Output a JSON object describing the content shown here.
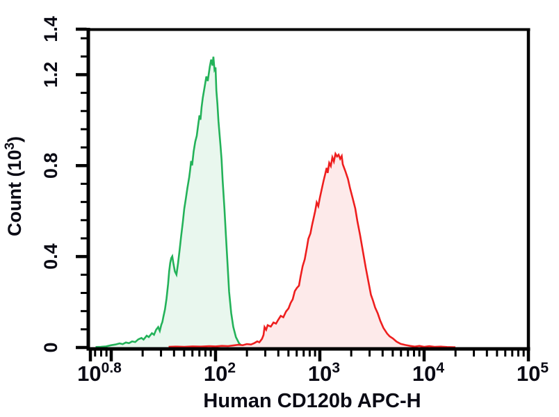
{
  "figure": {
    "type_label": "flow-cytometry-histogram"
  },
  "chart_data": {
    "type": "area",
    "title": "",
    "xlabel": "Human CD120b APC-H",
    "ylabel": "Count (10^3)",
    "ylabel_parts": {
      "base": "Count (10",
      "sup": "3",
      "close": ")"
    },
    "x_axis": {
      "scale": "log10",
      "min_log": 0.8,
      "max_log": 5,
      "decade_tick_logs": [
        0.8,
        1,
        2,
        3,
        4,
        5
      ],
      "labeled_ticks": [
        {
          "log": 0.8,
          "base": "10",
          "exp": "0.8"
        },
        {
          "log": 2,
          "base": "10",
          "exp": "2"
        },
        {
          "log": 3,
          "base": "10",
          "exp": "3"
        },
        {
          "log": 4,
          "base": "10",
          "exp": "4"
        },
        {
          "log": 5,
          "base": "10",
          "exp": "5"
        }
      ]
    },
    "y_axis": {
      "min": 0,
      "max": 1.4,
      "major_ticks": [
        {
          "value": 0,
          "label": "0"
        },
        {
          "value": 0.4,
          "label": "0.4"
        },
        {
          "value": 0.8,
          "label": "0.8"
        },
        {
          "value": 1.2,
          "label": "1.2"
        },
        {
          "value": 1.4,
          "label": "1.4"
        }
      ],
      "minor_step": 0.08,
      "grid": false
    },
    "legend": "none",
    "series": [
      {
        "name": "green-control-histogram",
        "stroke": "#23b259",
        "fill": "#e9f7ee",
        "points": [
          [
            0.85,
            0.002
          ],
          [
            0.9,
            0.003
          ],
          [
            0.95,
            0.005
          ],
          [
            1.0,
            0.01
          ],
          [
            1.04,
            0.013
          ],
          [
            1.08,
            0.018
          ],
          [
            1.11,
            0.015
          ],
          [
            1.14,
            0.022
          ],
          [
            1.17,
            0.019
          ],
          [
            1.2,
            0.027
          ],
          [
            1.23,
            0.024
          ],
          [
            1.26,
            0.036
          ],
          [
            1.29,
            0.042
          ],
          [
            1.31,
            0.035
          ],
          [
            1.34,
            0.052
          ],
          [
            1.36,
            0.046
          ],
          [
            1.39,
            0.063
          ],
          [
            1.41,
            0.056
          ],
          [
            1.43,
            0.078
          ],
          [
            1.45,
            0.09
          ],
          [
            1.465,
            0.073
          ],
          [
            1.48,
            0.1
          ],
          [
            1.49,
            0.112
          ],
          [
            1.5,
            0.135
          ],
          [
            1.515,
            0.168
          ],
          [
            1.53,
            0.215
          ],
          [
            1.545,
            0.28
          ],
          [
            1.555,
            0.335
          ],
          [
            1.565,
            0.372
          ],
          [
            1.575,
            0.393
          ],
          [
            1.585,
            0.401
          ],
          [
            1.595,
            0.372
          ],
          [
            1.61,
            0.335
          ],
          [
            1.625,
            0.321
          ],
          [
            1.64,
            0.369
          ],
          [
            1.655,
            0.428
          ],
          [
            1.67,
            0.489
          ],
          [
            1.686,
            0.55
          ],
          [
            1.7,
            0.61
          ],
          [
            1.715,
            0.655
          ],
          [
            1.73,
            0.701
          ],
          [
            1.748,
            0.75
          ],
          [
            1.757,
            0.782
          ],
          [
            1.766,
            0.82
          ],
          [
            1.775,
            0.801
          ],
          [
            1.79,
            0.862
          ],
          [
            1.805,
            0.905
          ],
          [
            1.82,
            0.931
          ],
          [
            1.833,
            0.976
          ],
          [
            1.846,
            1.021
          ],
          [
            1.855,
            1.002
          ],
          [
            1.866,
            1.056
          ],
          [
            1.878,
            1.099
          ],
          [
            1.895,
            1.146
          ],
          [
            1.912,
            1.192
          ],
          [
            1.925,
            1.172
          ],
          [
            1.945,
            1.236
          ],
          [
            1.958,
            1.266
          ],
          [
            1.972,
            1.24
          ],
          [
            1.979,
            1.279
          ],
          [
            1.99,
            1.222
          ],
          [
            2.0,
            1.232
          ],
          [
            2.008,
            1.13
          ],
          [
            2.018,
            1.072
          ],
          [
            2.028,
            0.996
          ],
          [
            2.04,
            0.93
          ],
          [
            2.048,
            0.886
          ],
          [
            2.058,
            0.826
          ],
          [
            2.068,
            0.736
          ],
          [
            2.085,
            0.611
          ],
          [
            2.1,
            0.489
          ],
          [
            2.115,
            0.366
          ],
          [
            2.13,
            0.246
          ],
          [
            2.15,
            0.152
          ],
          [
            2.17,
            0.091
          ],
          [
            2.195,
            0.046
          ],
          [
            2.225,
            0.019
          ],
          [
            2.25,
            0.008
          ],
          [
            2.29,
            0.003
          ],
          [
            2.33,
            0.001
          ]
        ]
      },
      {
        "name": "red-cd120b-histogram",
        "stroke": "#ee1e1e",
        "fill": "#fdeaea",
        "points": [
          [
            1.55,
            0.003
          ],
          [
            1.62,
            0.004
          ],
          [
            1.7,
            0.003
          ],
          [
            1.78,
            0.005
          ],
          [
            1.86,
            0.004
          ],
          [
            1.94,
            0.006
          ],
          [
            2.0,
            0.005
          ],
          [
            2.06,
            0.007
          ],
          [
            2.12,
            0.006
          ],
          [
            2.17,
            0.009
          ],
          [
            2.22,
            0.012
          ],
          [
            2.26,
            0.01
          ],
          [
            2.3,
            0.015
          ],
          [
            2.34,
            0.013
          ],
          [
            2.37,
            0.019
          ],
          [
            2.4,
            0.027
          ],
          [
            2.42,
            0.023
          ],
          [
            2.445,
            0.038
          ],
          [
            2.46,
            0.055
          ],
          [
            2.47,
            0.09
          ],
          [
            2.485,
            0.078
          ],
          [
            2.5,
            0.098
          ],
          [
            2.53,
            0.092
          ],
          [
            2.555,
            0.11
          ],
          [
            2.58,
            0.105
          ],
          [
            2.6,
            0.121
          ],
          [
            2.625,
            0.139
          ],
          [
            2.65,
            0.133
          ],
          [
            2.675,
            0.158
          ],
          [
            2.7,
            0.172
          ],
          [
            2.72,
            0.196
          ],
          [
            2.74,
            0.212
          ],
          [
            2.76,
            0.248
          ],
          [
            2.78,
            0.262
          ],
          [
            2.8,
            0.272
          ],
          [
            2.815,
            0.312
          ],
          [
            2.835,
            0.358
          ],
          [
            2.855,
            0.388
          ],
          [
            2.875,
            0.438
          ],
          [
            2.89,
            0.478
          ],
          [
            2.91,
            0.502
          ],
          [
            2.925,
            0.538
          ],
          [
            2.94,
            0.568
          ],
          [
            2.955,
            0.6
          ],
          [
            2.97,
            0.638
          ],
          [
            2.985,
            0.622
          ],
          [
            3.0,
            0.658
          ],
          [
            3.02,
            0.7
          ],
          [
            3.035,
            0.732
          ],
          [
            3.05,
            0.76
          ],
          [
            3.065,
            0.79
          ],
          [
            3.075,
            0.768
          ],
          [
            3.09,
            0.812
          ],
          [
            3.105,
            0.798
          ],
          [
            3.12,
            0.836
          ],
          [
            3.135,
            0.818
          ],
          [
            3.15,
            0.852
          ],
          [
            3.165,
            0.84
          ],
          [
            3.18,
            0.848
          ],
          [
            3.195,
            0.83
          ],
          [
            3.21,
            0.842
          ],
          [
            3.22,
            0.806
          ],
          [
            3.245,
            0.775
          ],
          [
            3.27,
            0.741
          ],
          [
            3.29,
            0.7
          ],
          [
            3.315,
            0.656
          ],
          [
            3.34,
            0.611
          ],
          [
            3.36,
            0.556
          ],
          [
            3.385,
            0.496
          ],
          [
            3.41,
            0.431
          ],
          [
            3.44,
            0.352
          ],
          [
            3.465,
            0.291
          ],
          [
            3.49,
            0.232
          ],
          [
            3.51,
            0.206
          ],
          [
            3.53,
            0.176
          ],
          [
            3.555,
            0.15
          ],
          [
            3.58,
            0.117
          ],
          [
            3.61,
            0.086
          ],
          [
            3.645,
            0.061
          ],
          [
            3.67,
            0.049
          ],
          [
            3.7,
            0.04
          ],
          [
            3.735,
            0.026
          ],
          [
            3.775,
            0.016
          ],
          [
            3.82,
            0.011
          ],
          [
            3.865,
            0.007
          ],
          [
            3.91,
            0.004
          ],
          [
            3.955,
            0.007
          ],
          [
            4.0,
            0.003
          ],
          [
            4.05,
            0.006
          ],
          [
            4.1,
            0.003
          ],
          [
            4.16,
            0.004
          ],
          [
            4.22,
            0.002
          ],
          [
            4.3,
            0.001
          ]
        ]
      }
    ]
  },
  "colors": {
    "axis": "#000000",
    "text": "#0a0a14",
    "background": "#ffffff",
    "green_stroke": "#23b259",
    "green_fill": "#e9f7ee",
    "red_stroke": "#ee1e1e",
    "red_fill": "#fdeaea"
  }
}
